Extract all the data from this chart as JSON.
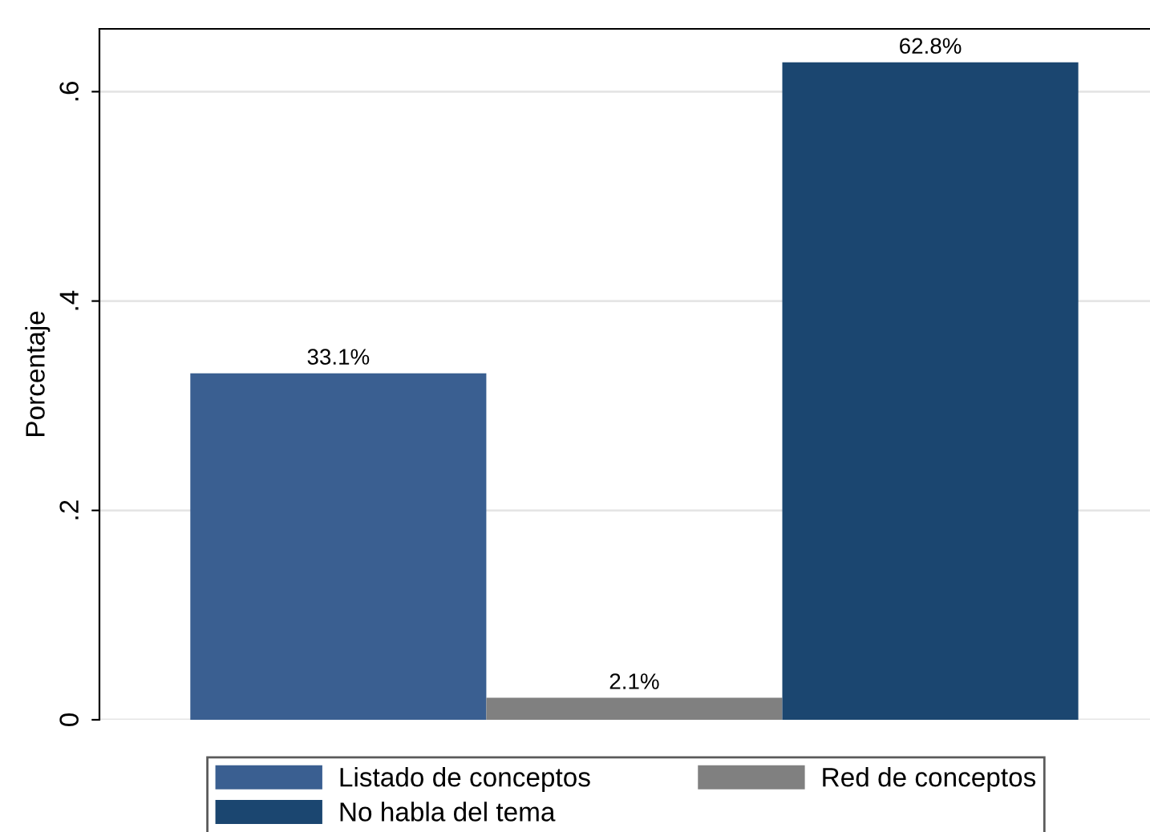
{
  "chart_data": {
    "type": "bar",
    "ylabel": "Porcentaje",
    "categories": [
      null,
      null,
      null
    ],
    "stacked": true,
    "series": [
      {
        "name": "Listado de conceptos",
        "color": "#3a5f91",
        "values": [
          0.331,
          null,
          null
        ],
        "value_labels": [
          "33.1%",
          null,
          null
        ]
      },
      {
        "name": "Red de conceptos",
        "color": "#808080",
        "values": [
          null,
          0.021,
          null
        ],
        "value_labels": [
          null,
          "2.1%",
          null
        ]
      },
      {
        "name": "No habla del tema",
        "color": "#1b4670",
        "values": [
          null,
          null,
          0.628
        ],
        "value_labels": [
          null,
          null,
          "62.8%"
        ]
      }
    ],
    "ylim": [
      0,
      0.66
    ],
    "yticks": [
      {
        "value": 0,
        "label": "0"
      },
      {
        "value": 0.2,
        "label": ".2"
      },
      {
        "value": 0.4,
        "label": ".4"
      },
      {
        "value": 0.6,
        "label": ".6"
      }
    ],
    "grid": "y",
    "legend": "bottom"
  }
}
